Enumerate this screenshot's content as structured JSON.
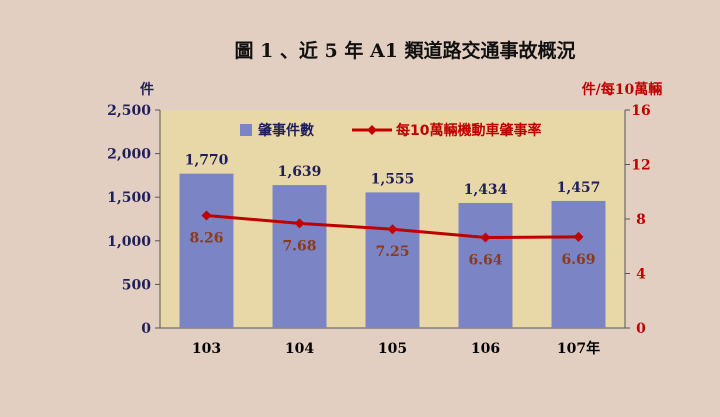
{
  "chart_data": {
    "type": "bar",
    "title": "圖 1 、近 5 年 A1 類道路交通事故概況",
    "categories": [
      "103",
      "104",
      "105",
      "106",
      "107年"
    ],
    "y_left_label": "件",
    "y_right_label": "件/每10萬輛",
    "y_left_range": [
      0,
      2500
    ],
    "y_left_ticks": [
      "0",
      "500",
      "1,000",
      "1,500",
      "2,000",
      "2,500"
    ],
    "y_right_range": [
      0,
      16
    ],
    "y_right_ticks": [
      "0",
      "4",
      "8",
      "12",
      "16"
    ],
    "grid": false,
    "legend_position": "top",
    "series": [
      {
        "name": "肇事件數",
        "type": "bar",
        "axis": "left",
        "color": "#7b84c5",
        "values": [
          1770,
          1639,
          1555,
          1434,
          1457
        ],
        "labels": [
          "1,770",
          "1,639",
          "1,555",
          "1,434",
          "1,457"
        ]
      },
      {
        "name": "每10萬輛機動車肇事率",
        "type": "line",
        "axis": "right",
        "color": "#c00000",
        "label_color": "#8b3a1a",
        "values": [
          8.26,
          7.68,
          7.25,
          6.64,
          6.69
        ],
        "labels": [
          "8.26",
          "7.68",
          "7.25",
          "6.64",
          "6.69"
        ]
      }
    ],
    "colors": {
      "background": "#e3cfc1",
      "plot_background": "#e8d8a8",
      "left_axis_text": "#1f1f5c",
      "right_axis_text": "#c00000",
      "category_text": "#000000",
      "bar_label_text": "#1f1f5c"
    }
  }
}
